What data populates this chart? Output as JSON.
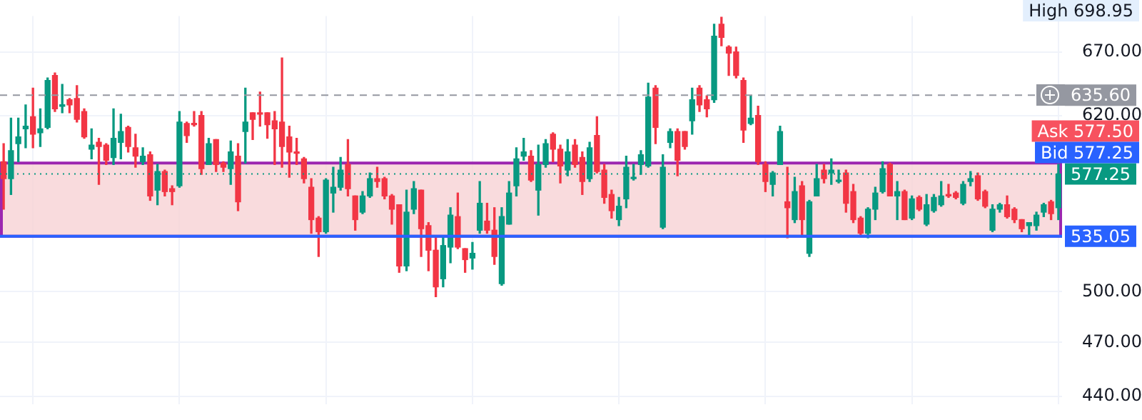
{
  "chart_data": {
    "type": "candlestick",
    "categories": [
      null,
      null,
      null,
      null,
      null,
      null,
      null,
      null,
      null,
      null,
      null,
      null,
      null,
      null,
      null,
      null,
      null,
      null,
      null,
      null,
      null,
      null,
      null,
      null,
      null,
      null,
      null,
      null,
      null,
      null,
      null,
      null,
      null,
      null,
      null,
      null,
      null,
      null,
      null,
      null,
      null,
      null,
      null,
      null,
      null,
      null,
      null,
      null,
      null,
      null,
      null,
      null,
      null,
      null,
      null,
      null,
      null,
      null,
      null,
      null,
      null,
      null,
      null,
      null,
      null,
      null,
      null,
      null,
      null,
      null,
      null,
      null,
      null,
      null,
      null,
      null,
      null,
      null,
      null,
      null,
      null,
      null,
      null,
      null,
      null,
      null,
      null,
      null,
      null,
      null,
      null,
      null,
      null,
      null,
      null,
      null,
      null,
      null,
      null,
      null,
      null,
      null,
      null,
      null,
      null,
      null,
      null,
      null,
      null,
      null,
      null,
      null,
      null,
      null,
      null,
      null,
      null,
      null,
      null,
      null,
      null,
      null,
      null,
      null,
      null,
      null,
      null,
      null,
      null,
      null,
      null,
      null,
      null,
      null,
      null,
      null,
      null,
      null,
      null,
      null,
      null,
      null,
      null,
      null,
      null
    ],
    "ohlc": [
      [
        586,
        599,
        553,
        574
      ],
      [
        574,
        618,
        563,
        594
      ],
      [
        599,
        618,
        586,
        604
      ],
      [
        610,
        628,
        596,
        612
      ],
      [
        619,
        641,
        596,
        606
      ],
      [
        607,
        625,
        597,
        610
      ],
      [
        611,
        649,
        610,
        647
      ],
      [
        651,
        653,
        623,
        625
      ],
      [
        627,
        644,
        622,
        628
      ],
      [
        632,
        633,
        622,
        628
      ],
      [
        633,
        643,
        615,
        617
      ],
      [
        623,
        625,
        603,
        604
      ],
      [
        595,
        610,
        588,
        598
      ],
      [
        600,
        603,
        570,
        597
      ],
      [
        598,
        599,
        584,
        587
      ],
      [
        589,
        625,
        584,
        603
      ],
      [
        600,
        621,
        588,
        608
      ],
      [
        611,
        612,
        593,
        597
      ],
      [
        596,
        606,
        582,
        590
      ],
      [
        586,
        596,
        584,
        590
      ],
      [
        591,
        593,
        559,
        562
      ],
      [
        566,
        584,
        556,
        579
      ],
      [
        579,
        580,
        562,
        565
      ],
      [
        567,
        569,
        556,
        565
      ],
      [
        569,
        623,
        568,
        615
      ],
      [
        614,
        615,
        600,
        605
      ],
      [
        614,
        623,
        612,
        613
      ],
      [
        620,
        623,
        577,
        581
      ],
      [
        584,
        603,
        584,
        599
      ],
      [
        602,
        602,
        579,
        584
      ],
      [
        585,
        586,
        579,
        582
      ],
      [
        581,
        601,
        570,
        593
      ],
      [
        590,
        599,
        552,
        558
      ],
      [
        608,
        641,
        585,
        615
      ],
      [
        622,
        622,
        602,
        617
      ],
      [
        622,
        638,
        612,
        621
      ],
      [
        622,
        622,
        603,
        613
      ],
      [
        616,
        623,
        584,
        610
      ],
      [
        615,
        665,
        582,
        597
      ],
      [
        604,
        612,
        575,
        593
      ],
      [
        593,
        603,
        584,
        592
      ],
      [
        588,
        589,
        571,
        574
      ],
      [
        568,
        574,
        537,
        546
      ],
      [
        547,
        548,
        522,
        538
      ],
      [
        538,
        574,
        537,
        573
      ],
      [
        564,
        582,
        551,
        568
      ],
      [
        568,
        589,
        566,
        580
      ],
      [
        584,
        602,
        562,
        567
      ],
      [
        562,
        562,
        539,
        546
      ],
      [
        551,
        565,
        550,
        562
      ],
      [
        562,
        578,
        561,
        574
      ],
      [
        574,
        582,
        568,
        572
      ],
      [
        574,
        575,
        560,
        562
      ],
      [
        562,
        563,
        543,
        553
      ],
      [
        556,
        556,
        512,
        516
      ],
      [
        516,
        566,
        513,
        551
      ],
      [
        553,
        572,
        550,
        567
      ],
      [
        566,
        566,
        522,
        540
      ],
      [
        542,
        544,
        513,
        526
      ],
      [
        526,
        535,
        497,
        503
      ],
      [
        508,
        535,
        503,
        529
      ],
      [
        528,
        554,
        518,
        549
      ],
      [
        548,
        564,
        527,
        528
      ],
      [
        527,
        527,
        512,
        520
      ],
      [
        521,
        531,
        514,
        524
      ],
      [
        539,
        572,
        537,
        557
      ],
      [
        545,
        557,
        537,
        539
      ],
      [
        539,
        554,
        517,
        522
      ],
      [
        505,
        554,
        504,
        548
      ],
      [
        543,
        572,
        543,
        564
      ],
      [
        569,
        596,
        562,
        588
      ],
      [
        590,
        603,
        587,
        593
      ],
      [
        590,
        594,
        572,
        573
      ],
      [
        566,
        598,
        549,
        584
      ],
      [
        584,
        602,
        582,
        599
      ],
      [
        606,
        607,
        586,
        595
      ],
      [
        595,
        598,
        571,
        583
      ],
      [
        580,
        602,
        576,
        593
      ],
      [
        598,
        602,
        582,
        584
      ],
      [
        589,
        593,
        563,
        572
      ],
      [
        574,
        600,
        572,
        596
      ],
      [
        605,
        619,
        578,
        579
      ],
      [
        580,
        584,
        557,
        561
      ],
      [
        563,
        566,
        547,
        552
      ],
      [
        546,
        561,
        542,
        555
      ],
      [
        560,
        590,
        554,
        582
      ],
      [
        574,
        584,
        573,
        575
      ],
      [
        584,
        594,
        577,
        591
      ],
      [
        583,
        645,
        582,
        634
      ],
      [
        641,
        643,
        599,
        611
      ],
      [
        541,
        591,
        540,
        582
      ],
      [
        600,
        610,
        596,
        608
      ],
      [
        608,
        610,
        576,
        587
      ],
      [
        608,
        608,
        595,
        597
      ],
      [
        616,
        641,
        606,
        632
      ],
      [
        641,
        643,
        623,
        628
      ],
      [
        632,
        635,
        619,
        625
      ],
      [
        632,
        693,
        630,
        683
      ],
      [
        693,
        698.95,
        675,
        682
      ],
      [
        674,
        675,
        651,
        669
      ],
      [
        670,
        674,
        649,
        651
      ],
      [
        647,
        649,
        600,
        609
      ],
      [
        614,
        635,
        613,
        618
      ],
      [
        620,
        627,
        584,
        586
      ],
      [
        584,
        586,
        565,
        572
      ],
      [
        570,
        579,
        562,
        578
      ],
      [
        584,
        612,
        584,
        608
      ],
      [
        558,
        582,
        534,
        554
      ],
      [
        546,
        575,
        544,
        565
      ],
      [
        569,
        572,
        535,
        546
      ],
      [
        524,
        559,
        522,
        558
      ],
      [
        562,
        584,
        562,
        574
      ],
      [
        580,
        584,
        571,
        574
      ],
      [
        578,
        588,
        570,
        580
      ],
      [
        572,
        580,
        571,
        573
      ],
      [
        578,
        580,
        551,
        557
      ],
      [
        565,
        570,
        544,
        546
      ],
      [
        547,
        548,
        535,
        537
      ],
      [
        537,
        554,
        534,
        553
      ],
      [
        553,
        568,
        546,
        564
      ],
      [
        565,
        586,
        564,
        581
      ],
      [
        584,
        585,
        562,
        562
      ],
      [
        562,
        572,
        546,
        565
      ],
      [
        565,
        566,
        546,
        546
      ],
      [
        547,
        562,
        546,
        560
      ],
      [
        561,
        562,
        552,
        553
      ],
      [
        543,
        563,
        542,
        556
      ],
      [
        552,
        563,
        551,
        561
      ],
      [
        556,
        572,
        555,
        562
      ],
      [
        563,
        570,
        561,
        562
      ],
      [
        564,
        565,
        560,
        561
      ],
      [
        557,
        572,
        556,
        570
      ],
      [
        572,
        579,
        569,
        574
      ],
      [
        576,
        578,
        559,
        560
      ],
      [
        565,
        566,
        554,
        555
      ],
      [
        539,
        556,
        538,
        553
      ],
      [
        553,
        557,
        551,
        556
      ],
      [
        556,
        562,
        547,
        548
      ],
      [
        553,
        554,
        544,
        546
      ],
      [
        546,
        546,
        538,
        540
      ],
      [
        542,
        544,
        536,
        544
      ],
      [
        542,
        551,
        539,
        549
      ],
      [
        551,
        557,
        548,
        556
      ],
      [
        558,
        559,
        546,
        550
      ],
      [
        554,
        584,
        546,
        577.25
      ]
    ],
    "colors": [
      "#f23645",
      "#089981",
      "#089981",
      "#089981",
      "#f23645",
      "#089981",
      "#089981",
      "#f23645",
      "#089981",
      "#f23645",
      "#f23645",
      "#f23645",
      "#089981",
      "#f23645",
      "#f23645",
      "#089981",
      "#089981",
      "#f23645",
      "#f23645",
      "#089981",
      "#f23645",
      "#089981",
      "#f23645",
      "#f23645",
      "#089981",
      "#f23645",
      "#f23645",
      "#f23645",
      "#089981",
      "#f23645",
      "#f23645",
      "#089981",
      "#f23645",
      "#089981",
      "#f23645",
      "#f23645",
      "#f23645",
      "#f23645",
      "#f23645",
      "#f23645",
      "#f23645",
      "#f23645",
      "#f23645",
      "#f23645",
      "#089981",
      "#089981",
      "#089981",
      "#f23645",
      "#f23645",
      "#089981",
      "#089981",
      "#f23645",
      "#f23645",
      "#f23645",
      "#f23645",
      "#089981",
      "#089981",
      "#f23645",
      "#f23645",
      "#f23645",
      "#089981",
      "#089981",
      "#f23645",
      "#f23645",
      "#089981",
      "#089981",
      "#f23645",
      "#f23645",
      "#089981",
      "#089981",
      "#089981",
      "#089981",
      "#f23645",
      "#089981",
      "#089981",
      "#f23645",
      "#f23645",
      "#089981",
      "#f23645",
      "#f23645",
      "#089981",
      "#f23645",
      "#f23645",
      "#f23645",
      "#089981",
      "#089981",
      "#089981",
      "#089981",
      "#089981",
      "#f23645",
      "#089981",
      "#089981",
      "#f23645",
      "#f23645",
      "#089981",
      "#f23645",
      "#f23645",
      "#089981",
      "#f23645",
      "#f23645",
      "#f23645",
      "#f23645",
      "#089981",
      "#f23645",
      "#f23645",
      "#089981",
      "#089981",
      "#f23645",
      "#089981",
      "#f23645",
      "#089981",
      "#089981",
      "#f23645",
      "#089981",
      "#089981",
      "#f23645",
      "#f23645",
      "#f23645",
      "#089981",
      "#089981",
      "#089981",
      "#f23645",
      "#089981",
      "#f23645",
      "#089981",
      "#f23645",
      "#089981",
      "#089981",
      "#089981",
      "#f23645",
      "#f23645",
      "#089981",
      "#089981",
      "#f23645",
      "#f23645",
      "#089981",
      "#089981",
      "#f23645",
      "#f23645",
      "#f23645",
      "#089981",
      "#089981",
      "#089981",
      "#f23645",
      "#089981"
    ],
    "log": true,
    "ylim": [
      436,
      700
    ],
    "yticks": [
      {
        "value": 440,
        "label": "440.00"
      },
      {
        "value": 470,
        "label": "470.00"
      },
      {
        "value": 500,
        "label": "500.00"
      },
      {
        "value": 620,
        "label": "620.00"
      },
      {
        "value": 670,
        "label": "670.00"
      }
    ],
    "grid": true,
    "tick_labels": "y",
    "ref_lines": [
      {
        "axis": "y",
        "value": 635.6,
        "label": "635.60",
        "color": "#9598a1",
        "line_style": "dashed"
      },
      {
        "axis": "y",
        "value": 577.25,
        "label": "577.25",
        "color": "#089981",
        "line_style": "dotted"
      },
      {
        "axis": "y",
        "value": 535.05,
        "label": "535.05",
        "color": "#2962ff",
        "line_style": "solid"
      }
    ],
    "bands": [
      {
        "axis": "y",
        "from": 535.05,
        "to": 585,
        "color": "#f7d2d5"
      }
    ],
    "annotations": [
      "High 698.95",
      "Ask 577.50",
      "Bid 577.25"
    ]
  }
}
